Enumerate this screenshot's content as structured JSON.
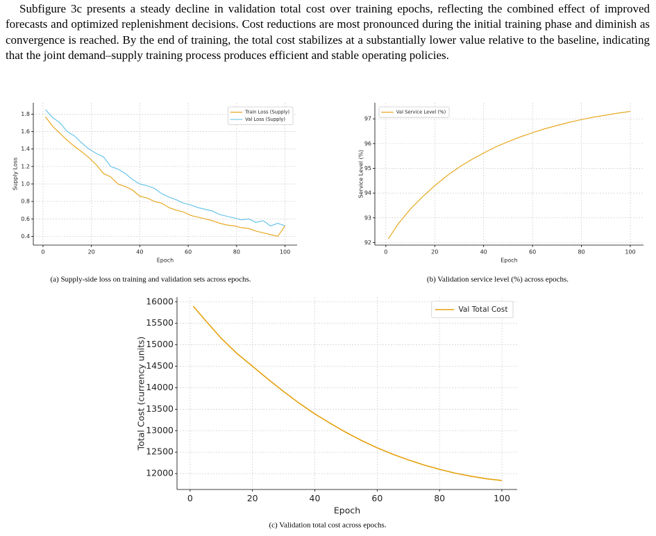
{
  "paragraph": "Subfigure 3c presents a steady decline in validation total cost over training epochs, reflecting the combined effect of improved forecasts and optimized replenishment decisions. Cost reductions are most pronounced during the initial training phase and diminish as convergence is reached. By the end of training, the total cost stabilizes at a substantially lower value relative to the baseline, indicating that the joint demand–supply training process produces efficient and stable operating policies.",
  "chart_data": [
    {
      "type": "line",
      "caption": "(a) Supply-side loss on training and validation sets across epochs.",
      "x_label": "Epoch",
      "y_label": "Supply Loss",
      "legend": "upper right",
      "grid": true,
      "x": [
        1,
        4,
        7,
        10,
        13,
        16,
        19,
        22,
        25,
        28,
        31,
        34,
        37,
        40,
        43,
        46,
        49,
        52,
        55,
        58,
        61,
        64,
        67,
        70,
        73,
        76,
        79,
        82,
        85,
        88,
        91,
        94,
        97,
        100
      ],
      "series": [
        {
          "name": "Train Loss (Supply)",
          "color": "#e5a00d",
          "values": [
            1.77,
            1.66,
            1.58,
            1.5,
            1.43,
            1.37,
            1.3,
            1.22,
            1.12,
            1.08,
            1.0,
            0.97,
            0.93,
            0.86,
            0.84,
            0.8,
            0.78,
            0.73,
            0.7,
            0.68,
            0.64,
            0.62,
            0.6,
            0.58,
            0.55,
            0.53,
            0.52,
            0.5,
            0.49,
            0.46,
            0.44,
            0.42,
            0.4,
            0.52
          ]
        },
        {
          "name": "Val Loss (Supply)",
          "color": "#5bbfe8",
          "values": [
            1.85,
            1.76,
            1.7,
            1.6,
            1.55,
            1.47,
            1.4,
            1.35,
            1.31,
            1.2,
            1.17,
            1.12,
            1.05,
            1.0,
            0.98,
            0.95,
            0.89,
            0.85,
            0.82,
            0.78,
            0.76,
            0.73,
            0.71,
            0.69,
            0.65,
            0.63,
            0.61,
            0.59,
            0.6,
            0.56,
            0.58,
            0.52,
            0.55,
            0.52
          ]
        }
      ],
      "xlim": [
        -4,
        105
      ],
      "ylim": [
        0.3,
        1.93
      ],
      "xticks": [
        0,
        20,
        40,
        60,
        80,
        100
      ],
      "yticks": [
        0.4,
        0.6,
        0.8,
        {
          "value": 1,
          "label": "1.0"
        },
        1.2,
        1.4,
        1.6,
        1.8
      ]
    },
    {
      "type": "line",
      "caption": "(b) Validation service level (%) across epochs.",
      "x_label": "Epoch",
      "y_label": "Service Level (%)",
      "legend": "upper left",
      "grid": true,
      "x": [
        1,
        5,
        10,
        15,
        20,
        25,
        30,
        35,
        40,
        45,
        50,
        55,
        60,
        65,
        70,
        75,
        80,
        85,
        90,
        95,
        100
      ],
      "series": [
        {
          "name": "Val Service Level (%)",
          "color": "#e5a00d",
          "values": [
            92.15,
            92.75,
            93.35,
            93.85,
            94.3,
            94.7,
            95.05,
            95.35,
            95.62,
            95.87,
            96.08,
            96.27,
            96.44,
            96.6,
            96.73,
            96.86,
            96.97,
            97.07,
            97.15,
            97.23,
            97.3
          ]
        }
      ],
      "xlim": [
        -4.5,
        105.4
      ],
      "ylim": [
        91.9,
        97.65
      ],
      "xticks": [
        0,
        20,
        40,
        60,
        80,
        100
      ],
      "yticks": [
        92,
        93,
        94,
        95,
        96,
        97
      ]
    },
    {
      "type": "line",
      "caption": "(c) Validation total cost across epochs.",
      "x_label": "Epoch",
      "y_label": "Total Cost (currency units)",
      "legend": "upper right",
      "grid": true,
      "x": [
        1,
        5,
        10,
        15,
        20,
        25,
        30,
        35,
        40,
        45,
        50,
        55,
        60,
        65,
        70,
        75,
        80,
        85,
        90,
        95,
        100
      ],
      "series": [
        {
          "name": "Val Total Cost",
          "color": "#e5a00d",
          "values": [
            15900,
            15560,
            15150,
            14800,
            14500,
            14200,
            13910,
            13640,
            13390,
            13170,
            12960,
            12770,
            12600,
            12450,
            12320,
            12200,
            12100,
            12010,
            11940,
            11880,
            11840
          ]
        }
      ],
      "xlim": [
        -4.2,
        104.9
      ],
      "ylim": [
        11630,
        16110
      ],
      "xticks": [
        0,
        20,
        40,
        60,
        80,
        100
      ],
      "yticks": [
        12000,
        12500,
        13000,
        13500,
        14000,
        14500,
        15000,
        15500,
        16000
      ]
    }
  ]
}
